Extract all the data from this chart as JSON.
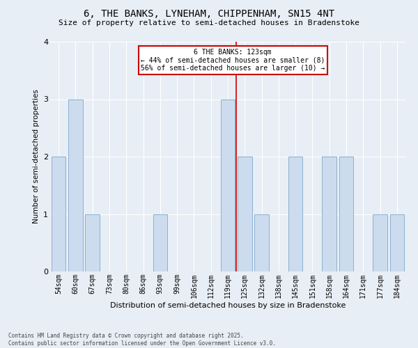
{
  "title1": "6, THE BANKS, LYNEHAM, CHIPPENHAM, SN15 4NT",
  "title2": "Size of property relative to semi-detached houses in Bradenstoke",
  "xlabel": "Distribution of semi-detached houses by size in Bradenstoke",
  "ylabel": "Number of semi-detached properties",
  "categories": [
    "54sqm",
    "60sqm",
    "67sqm",
    "73sqm",
    "80sqm",
    "86sqm",
    "93sqm",
    "99sqm",
    "106sqm",
    "112sqm",
    "119sqm",
    "125sqm",
    "132sqm",
    "138sqm",
    "145sqm",
    "151sqm",
    "158sqm",
    "164sqm",
    "171sqm",
    "177sqm",
    "184sqm"
  ],
  "values": [
    2,
    3,
    1,
    0,
    0,
    0,
    1,
    0,
    0,
    0,
    3,
    2,
    1,
    0,
    2,
    0,
    2,
    2,
    0,
    1,
    1
  ],
  "bar_color": "#ccdcee",
  "bar_edge_color": "#8ab0d0",
  "background_color": "#e8eef5",
  "grid_color": "#ffffff",
  "property_line_index": 10,
  "property_size": "123sqm",
  "property_name": "6 THE BANKS",
  "pct_smaller": 44,
  "pct_larger": 56,
  "n_smaller": 8,
  "n_larger": 10,
  "annotation_box_color": "#ffffff",
  "annotation_box_edge": "#cc0000",
  "line_color": "#cc0000",
  "footer1": "Contains HM Land Registry data © Crown copyright and database right 2025.",
  "footer2": "Contains public sector information licensed under the Open Government Licence v3.0.",
  "ylim": [
    0,
    4
  ],
  "yticks": [
    0,
    1,
    2,
    3,
    4
  ]
}
